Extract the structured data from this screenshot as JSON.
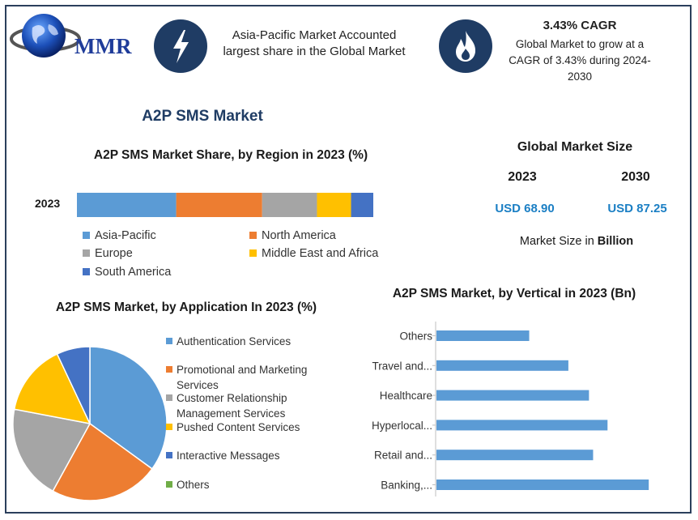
{
  "header": {
    "logo_text": "MMR",
    "info1_text": "Asia-Pacific Market Accounted largest share in the Global Market",
    "info2_title": "3.43% CAGR",
    "info2_text": "Global Market to grow at a CAGR of 3.43% during 2024-2030"
  },
  "main_title": "A2P SMS Market",
  "global_market": {
    "title": "Global Market Size",
    "year1": "2023",
    "year2": "2030",
    "value1": "USD 68.90",
    "value2": "USD 87.25",
    "note_prefix": "Market Size in ",
    "note_bold": "Billion"
  },
  "colors": {
    "navy": "#1f3c64",
    "accent_blue": "#1b7fc4"
  },
  "chart_data": [
    {
      "type": "bar",
      "orientation": "horizontal-stacked",
      "title": "A2P SMS Market Share, by Region in 2023 (%)",
      "categories": [
        "2023"
      ],
      "series": [
        {
          "name": "Asia-Pacific",
          "color": "#5b9bd5",
          "values": [
            33.5
          ]
        },
        {
          "name": "North America",
          "color": "#ed7d31",
          "values": [
            29
          ]
        },
        {
          "name": "Europe",
          "color": "#a5a5a5",
          "values": [
            18.5
          ]
        },
        {
          "name": "Middle East and Africa",
          "color": "#ffc000",
          "values": [
            11.5
          ]
        },
        {
          "name": "South America",
          "color": "#4472c4",
          "values": [
            7.5
          ]
        }
      ],
      "legend_position": "bottom"
    },
    {
      "type": "pie",
      "title": "A2P SMS Market, by Application In 2023 (%)",
      "slices": [
        {
          "name": "Authentication Services",
          "color": "#5b9bd5",
          "value": 35
        },
        {
          "name": "Promotional and Marketing Services",
          "color": "#ed7d31",
          "value": 23
        },
        {
          "name": "Customer Relationship Management Services",
          "color": "#a5a5a5",
          "value": 20
        },
        {
          "name": "Pushed Content Services",
          "color": "#ffc000",
          "value": 15
        },
        {
          "name": "Interactive Messages",
          "color": "#4472c4",
          "value": 7
        },
        {
          "name": "Others",
          "color": "#70ad47",
          "value": 0
        }
      ],
      "legend_position": "right"
    },
    {
      "type": "bar",
      "orientation": "horizontal",
      "title": "A2P SMS Market, by Vertical in 2023 (Bn)",
      "categories": [
        "Others",
        "Travel and...",
        "Healthcare",
        "Hyperlocal...",
        "Retail and...",
        "Banking,..."
      ],
      "values": [
        4.5,
        6.4,
        7.4,
        8.3,
        7.6,
        10.3
      ],
      "color": "#5b9bd5",
      "xlim": [
        0,
        11
      ]
    }
  ]
}
